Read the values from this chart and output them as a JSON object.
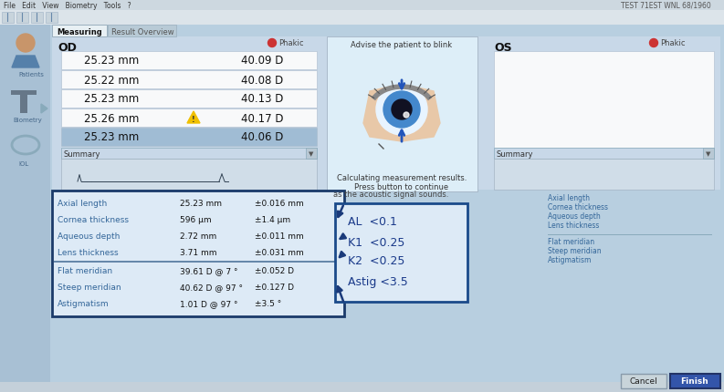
{
  "bg_color": "#b8cfe0",
  "sidebar_color": "#a8c0d4",
  "main_panel_color": "#c8d8e8",
  "white_panel_color": "#f0f4f8",
  "measurement_white": "#f8f9fa",
  "highlight_row_color": "#a0bcd4",
  "summary_box_color": "#1a3a6a",
  "annotation_box_color": "#1a4a8a",
  "arrow_color": "#1a3a7a",
  "eye_box_color": "#ddeeff",
  "measurements_left": [
    [
      "25.23 mm",
      "40.09 D"
    ],
    [
      "25.22 mm",
      "40.08 D"
    ],
    [
      "25.23 mm",
      "40.13 D"
    ],
    [
      "25.26 mm",
      "40.17 D"
    ],
    [
      "25.23 mm",
      "40.06 D"
    ]
  ],
  "highlight_row_index": 4,
  "summary_rows": [
    [
      "Axial length",
      "25.23 mm",
      "±0.016 mm"
    ],
    [
      "Cornea thickness",
      "596 μm",
      "±1.4 μm"
    ],
    [
      "Aqueous depth",
      "2.72 mm",
      "±0.011 mm"
    ],
    [
      "Lens thickness",
      "3.71 mm",
      "±0.031 mm"
    ]
  ],
  "meridian_rows": [
    [
      "Flat meridian",
      "39.61 D @ 7 °",
      "±0.052 D"
    ],
    [
      "Steep meridian",
      "40.62 D @ 97 °",
      "±0.127 D"
    ],
    [
      "Astigmatism",
      "1.01 D @ 97 °",
      "±3.5 °"
    ]
  ],
  "annotations": [
    "AL  <0.1",
    "K1  <0.25",
    "K2  <0.25",
    "Astig <3.5"
  ],
  "right_panel_labels_top": [
    "Axial length",
    "Cornea thickness",
    "Aqueous depth",
    "Lens thickness"
  ],
  "right_panel_labels_bot": [
    "Flat meridian",
    "Steep meridian",
    "Astigmatism"
  ],
  "eye_text_top": "Advise the patient to blink",
  "eye_text_bottom1": "Calculating measurement results.",
  "eye_text_bottom2": "Press button to continue",
  "od_label": "OD",
  "os_label": "OS",
  "phakic_label": "Phakic",
  "summary_label": "Summary",
  "measuring_tab": "Measuring",
  "result_tab": "Result Overview",
  "patient_text": "TEST 71EST WNL 68/1960",
  "button_cancel": "Cancel",
  "button_finish": "Finish",
  "acoustic_text": "as the acoustic signal sounds."
}
